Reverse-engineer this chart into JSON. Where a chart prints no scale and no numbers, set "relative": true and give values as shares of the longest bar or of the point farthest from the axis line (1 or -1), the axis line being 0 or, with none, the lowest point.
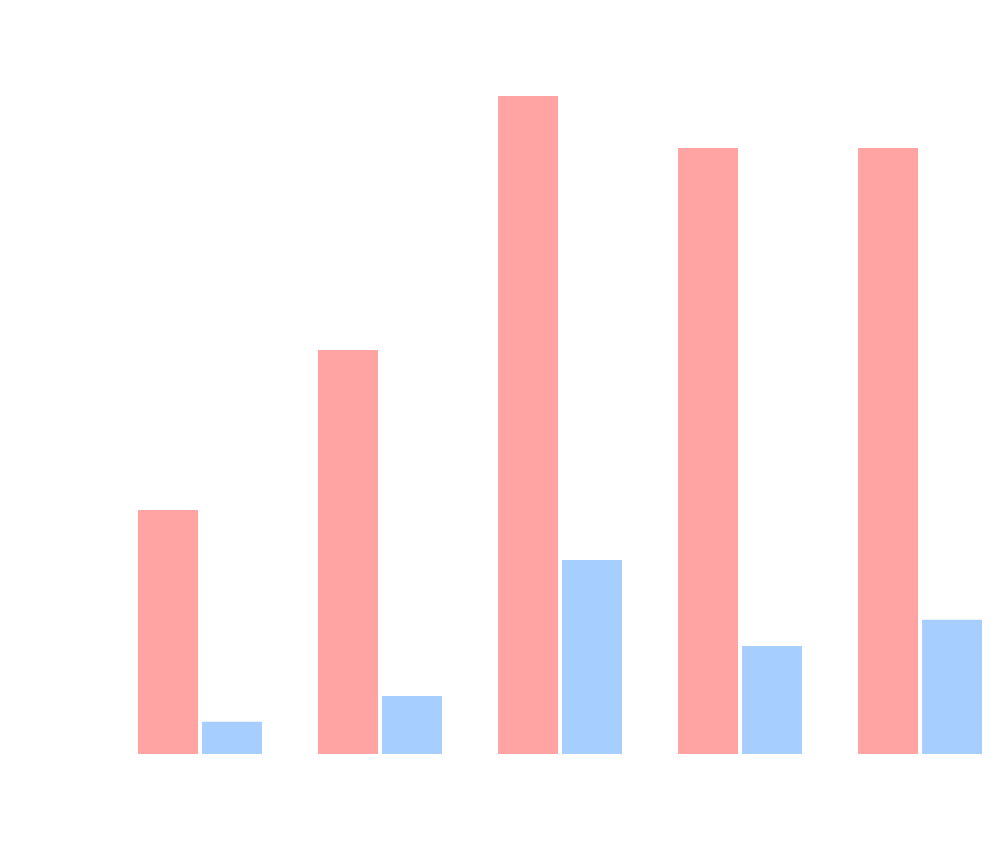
{
  "chart_data": {
    "type": "bar",
    "relative": true,
    "categories": [
      null,
      null,
      null,
      null,
      null
    ],
    "series": [
      {
        "color": "#ffa3a3",
        "values": [
          0.371,
          0.614,
          1,
          0.921,
          0.921
        ]
      },
      {
        "color": "#a6cfff",
        "values": [
          0.049,
          0.088,
          0.295,
          0.164,
          0.204
        ]
      }
    ]
  }
}
